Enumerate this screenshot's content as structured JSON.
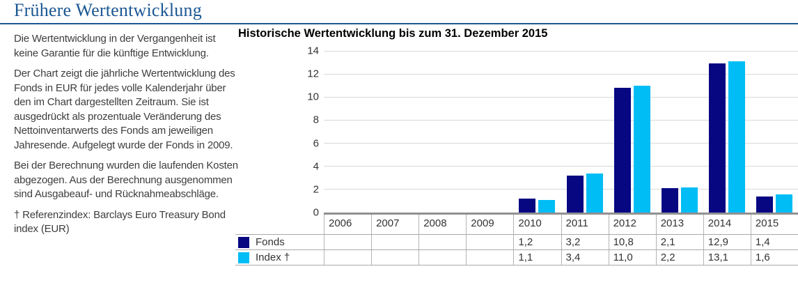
{
  "page": {
    "title": "Frühere Wertentwicklung"
  },
  "colors": {
    "accent_blue": "#1b5793",
    "fonds_navy": "#070782",
    "index_cyan": "#00bdf5",
    "gridline_gray": "#d9d9d9",
    "axis_gray": "#909090",
    "table_line_gray": "#a9a9a9"
  },
  "description": {
    "paragraphs": [
      "Die Wertentwicklung in der Vergangenheit ist keine Garantie für die künftige Entwicklung.",
      "Der Chart zeigt die jährliche Wertentwicklung des Fonds in EUR für jedes volle Kalenderjahr über den im Chart dargestellten Zeitraum. Sie ist ausgedrückt als prozentuale Veränderung des Nettoinventarwerts des Fonds am jeweiligen Jahresende. Aufgelegt wurde der Fonds in 2009.",
      "Bei der Berechnung wurden die laufenden Kosten abgezogen. Aus der Berechnung ausgenommen sind Ausgabeauf- und Rücknahmeabschläge.",
      "† Referenzindex: Barclays Euro Treasury Bond index (EUR)"
    ]
  },
  "chart_data": {
    "type": "bar",
    "title": "Historische Wertentwicklung bis zum 31. Dezember 2015",
    "categories": [
      "2006",
      "2007",
      "2008",
      "2009",
      "2010",
      "2011",
      "2012",
      "2013",
      "2014",
      "2015"
    ],
    "series": [
      {
        "key": "fonds",
        "name": "Fonds",
        "color": "#070782",
        "values": [
          null,
          null,
          null,
          null,
          1.2,
          3.2,
          10.8,
          2.1,
          12.9,
          1.4
        ],
        "labels": [
          "",
          "",
          "",
          "",
          "1,2",
          "3,2",
          "10,8",
          "2,1",
          "12,9",
          "1,4"
        ]
      },
      {
        "key": "index",
        "name": "Index †",
        "color": "#00bdf5",
        "values": [
          null,
          null,
          null,
          null,
          1.1,
          3.4,
          11.0,
          2.2,
          13.1,
          1.6
        ],
        "labels": [
          "",
          "",
          "",
          "",
          "1,1",
          "3,4",
          "11,0",
          "2,2",
          "13,1",
          "1,6"
        ]
      }
    ],
    "xlabel": "",
    "ylabel": "",
    "ylim": [
      0,
      14
    ],
    "yticks": [
      0,
      2,
      4,
      6,
      8,
      10,
      12,
      14
    ],
    "grid": true,
    "legend_position": "table rows below chart"
  }
}
